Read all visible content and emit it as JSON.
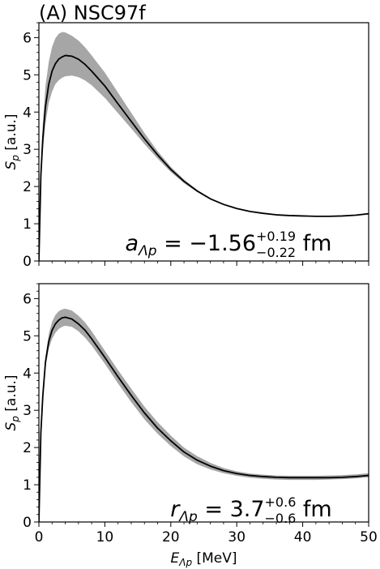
{
  "figure": {
    "title": "(A) NSC97f"
  },
  "chart_data": [
    {
      "type": "line",
      "panel": "top",
      "xlabel": "",
      "ylabel": "S_p [a.u.]",
      "ylabel_main": "S",
      "ylabel_sub": "p",
      "ylabel_unit": " [a.u.]",
      "xlim": [
        0,
        50
      ],
      "ylim": [
        0,
        6.4
      ],
      "x_ticks": [
        0,
        10,
        20,
        30,
        40,
        50
      ],
      "y_ticks": [
        0,
        1,
        2,
        3,
        4,
        5,
        6
      ],
      "x_tick_labels": [
        "0",
        "10",
        "20",
        "30",
        "40",
        "50"
      ],
      "y_tick_labels": [
        "0",
        "1",
        "2",
        "3",
        "4",
        "5",
        "6"
      ],
      "show_x_tick_labels": false,
      "colors": {
        "line": "#000000",
        "band": "#a6a6a6"
      },
      "annotation": {
        "main": "a",
        "sub": "Λp",
        "eq": " = −1.56",
        "sup_err": "+0.19",
        "sub_err": "−0.22",
        "unit": " fm"
      },
      "series": [
        {
          "x": [
            0,
            0.3,
            0.6,
            1,
            1.5,
            2,
            2.5,
            3,
            3.5,
            4,
            5,
            6,
            7,
            8,
            10,
            12,
            14,
            16,
            18,
            20,
            22,
            24,
            26,
            28,
            30,
            32,
            34,
            36,
            38,
            40,
            42,
            44,
            46,
            48,
            50
          ],
          "y": [
            0.0,
            2.3,
            3.3,
            4.15,
            4.75,
            5.1,
            5.3,
            5.42,
            5.48,
            5.52,
            5.5,
            5.42,
            5.28,
            5.1,
            4.7,
            4.22,
            3.75,
            3.28,
            2.85,
            2.46,
            2.14,
            1.88,
            1.67,
            1.52,
            1.41,
            1.33,
            1.28,
            1.24,
            1.22,
            1.21,
            1.2,
            1.2,
            1.21,
            1.23,
            1.27
          ],
          "lower": [
            0.0,
            2.05,
            2.95,
            3.7,
            4.25,
            4.55,
            4.75,
            4.85,
            4.92,
            4.96,
            4.98,
            4.94,
            4.85,
            4.72,
            4.38,
            3.97,
            3.56,
            3.14,
            2.75,
            2.39,
            2.09,
            1.85,
            1.65,
            1.51,
            1.4,
            1.32,
            1.27,
            1.24,
            1.22,
            1.21,
            1.2,
            1.2,
            1.21,
            1.23,
            1.27
          ],
          "upper": [
            0.0,
            2.6,
            3.7,
            4.7,
            5.35,
            5.75,
            5.98,
            6.1,
            6.15,
            6.14,
            6.05,
            5.92,
            5.74,
            5.52,
            5.06,
            4.52,
            3.98,
            3.44,
            2.95,
            2.53,
            2.19,
            1.91,
            1.69,
            1.53,
            1.42,
            1.34,
            1.28,
            1.24,
            1.22,
            1.21,
            1.2,
            1.2,
            1.21,
            1.23,
            1.27
          ]
        }
      ]
    },
    {
      "type": "line",
      "panel": "bottom",
      "xlabel": "E_Λp [MeV]",
      "xlabel_main": "E",
      "xlabel_sub": "Λp",
      "xlabel_unit": " [MeV]",
      "ylabel": "S_p [a.u.]",
      "ylabel_main": "S",
      "ylabel_sub": "p",
      "ylabel_unit": " [a.u.]",
      "xlim": [
        0,
        50
      ],
      "ylim": [
        0,
        6.4
      ],
      "x_ticks": [
        0,
        10,
        20,
        30,
        40,
        50
      ],
      "y_ticks": [
        0,
        1,
        2,
        3,
        4,
        5,
        6
      ],
      "x_tick_labels": [
        "0",
        "10",
        "20",
        "30",
        "40",
        "50"
      ],
      "y_tick_labels": [
        "0",
        "1",
        "2",
        "3",
        "4",
        "5",
        "6"
      ],
      "show_x_tick_labels": true,
      "colors": {
        "line": "#000000",
        "band": "#a6a6a6"
      },
      "annotation": {
        "main": "r",
        "sub": "Λp",
        "eq": " = 3.7",
        "sup_err": "+0.6",
        "sub_err": "−0.6",
        "unit": " fm"
      },
      "series": [
        {
          "x": [
            0,
            0.3,
            0.6,
            1,
            1.5,
            2,
            2.5,
            3,
            3.5,
            4,
            5,
            6,
            7,
            8,
            10,
            12,
            14,
            16,
            18,
            20,
            22,
            24,
            26,
            28,
            30,
            32,
            34,
            36,
            38,
            40,
            42,
            44,
            46,
            48,
            50
          ],
          "y": [
            0.0,
            2.4,
            3.4,
            4.3,
            4.85,
            5.15,
            5.32,
            5.42,
            5.48,
            5.5,
            5.45,
            5.32,
            5.15,
            4.92,
            4.42,
            3.9,
            3.4,
            2.93,
            2.52,
            2.18,
            1.88,
            1.66,
            1.5,
            1.38,
            1.3,
            1.25,
            1.22,
            1.2,
            1.19,
            1.19,
            1.19,
            1.19,
            1.2,
            1.22,
            1.25
          ],
          "lower": [
            0.0,
            2.3,
            3.3,
            4.15,
            4.65,
            4.92,
            5.08,
            5.18,
            5.24,
            5.27,
            5.24,
            5.12,
            4.95,
            4.74,
            4.25,
            3.72,
            3.22,
            2.76,
            2.37,
            2.04,
            1.76,
            1.55,
            1.41,
            1.31,
            1.24,
            1.19,
            1.16,
            1.14,
            1.13,
            1.13,
            1.13,
            1.14,
            1.15,
            1.17,
            1.2
          ],
          "upper": [
            0.0,
            2.5,
            3.55,
            4.45,
            5.05,
            5.38,
            5.56,
            5.66,
            5.71,
            5.73,
            5.68,
            5.54,
            5.36,
            5.12,
            4.6,
            4.08,
            3.58,
            3.1,
            2.68,
            2.32,
            2.0,
            1.77,
            1.59,
            1.45,
            1.36,
            1.3,
            1.27,
            1.25,
            1.24,
            1.24,
            1.24,
            1.25,
            1.26,
            1.28,
            1.31
          ]
        }
      ]
    }
  ]
}
